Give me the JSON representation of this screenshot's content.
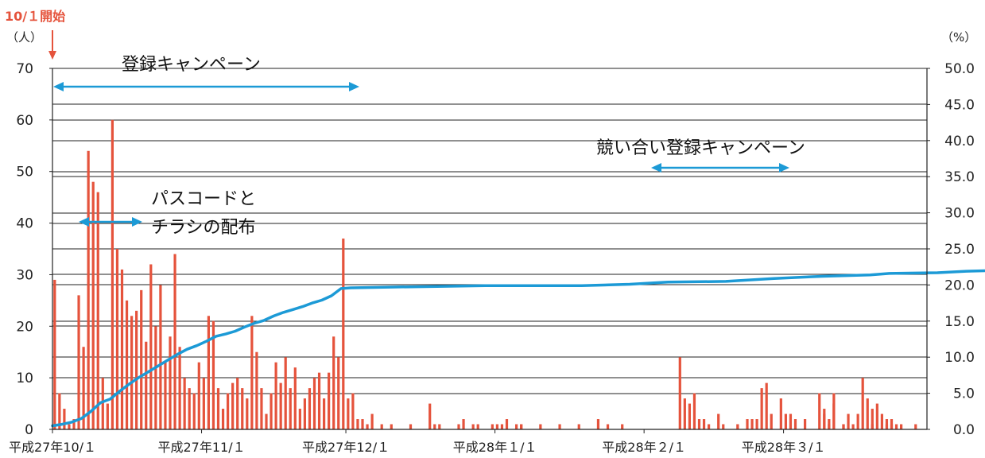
{
  "colors": {
    "bar": "#e5533c",
    "line": "#1c9ad6",
    "arrow": "#1c9ad6",
    "start": "#e5533c",
    "grid": "#222222"
  },
  "start_marker": {
    "label": "10/１開始"
  },
  "annotations": {
    "campaign": "登録キャンペーン",
    "passcode_line1": "パスコードと",
    "passcode_line2": "チラシの配布",
    "competition": "競い合い登録キャンペーン"
  },
  "chart_data": {
    "type": "bar+line",
    "left_axis": {
      "unit": "（人）",
      "min": 0,
      "max": 70,
      "step": 10,
      "ticks": [
        "0",
        "10",
        "20",
        "30",
        "40",
        "50",
        "60",
        "70"
      ]
    },
    "right_axis": {
      "unit": "（%）",
      "min": 0,
      "max": 50,
      "step": 5,
      "ticks": [
        "0.0",
        "5.0",
        "10.0",
        "15.0",
        "20.0",
        "25.0",
        "30.0",
        "35.0",
        "40.0",
        "45.0",
        "50.0"
      ]
    },
    "x_range": {
      "start": "平成27年10/1",
      "end": "平成28年3/31"
    },
    "x_labels": [
      "平成27年10/１",
      "平成27年11/１",
      "平成27年12/１",
      "平成28年１/１",
      "平成28年２/１",
      "平成28年３/１"
    ],
    "bar_series": {
      "axis": "left",
      "values": [
        29,
        7,
        4,
        1,
        2,
        26,
        16,
        54,
        48,
        46,
        10,
        5,
        60,
        35,
        31,
        25,
        22,
        23,
        27,
        17,
        32,
        20,
        28,
        13,
        18,
        34,
        16,
        10,
        8,
        7,
        13,
        10,
        22,
        21,
        8,
        4,
        7,
        9,
        10,
        8,
        6,
        22,
        15,
        8,
        3,
        7,
        13,
        9,
        14,
        8,
        12,
        4,
        6,
        8,
        10,
        11,
        6,
        11,
        18,
        14,
        37,
        6,
        7,
        2,
        2,
        1,
        3,
        0,
        1,
        0,
        0,
        0,
        0,
        0,
        0,
        0,
        0,
        0,
        5,
        1,
        0,
        0,
        0,
        0,
        1,
        2,
        0,
        1,
        1,
        0,
        0,
        1,
        1,
        0,
        2,
        0,
        1,
        1,
        0,
        0,
        0,
        0,
        0,
        0,
        0,
        0,
        0,
        0,
        0,
        0,
        0,
        0,
        0,
        0,
        0,
        0,
        0,
        0,
        0,
        0,
        0,
        0,
        0,
        0,
        0,
        0,
        0,
        0,
        0,
        0,
        14,
        6,
        5,
        7,
        2,
        2,
        1,
        0,
        3,
        1,
        0,
        0,
        1,
        0,
        2,
        2,
        2,
        8,
        9,
        3,
        0,
        6,
        3,
        3,
        2,
        0,
        2,
        0,
        0,
        7,
        3,
        1,
        7,
        0,
        1,
        3,
        1,
        3,
        10,
        6,
        1,
        0,
        0,
        1,
        2,
        1,
        0,
        0,
        0,
        0,
        0,
        0,
        0,
        0,
        0,
        0,
        0,
        0,
        0,
        0,
        0
      ],
      "sparse": [
        {
          "date": "12/10",
          "value": 1
        },
        {
          "date": "12/14",
          "value": 1
        },
        {
          "date": "12/20",
          "value": 1
        },
        {
          "date": "1/2",
          "value": 1
        },
        {
          "date": "1/6",
          "value": 1
        },
        {
          "date": "1/10",
          "value": 1
        },
        {
          "date": "1/14",
          "value": 1
        },
        {
          "date": "1/18",
          "value": 1
        },
        {
          "date": "1/22",
          "value": 2
        },
        {
          "date": "1/24",
          "value": 1
        },
        {
          "date": "1/27",
          "value": 1
        },
        {
          "date": "2/20",
          "value": 1
        },
        {
          "date": "3/9",
          "value": 4
        },
        {
          "date": "3/10",
          "value": 2
        },
        {
          "date": "3/11",
          "value": 5
        },
        {
          "date": "3/13",
          "value": 1
        },
        {
          "date": "3/19",
          "value": 4
        },
        {
          "date": "3/20",
          "value": 5
        },
        {
          "date": "3/21",
          "value": 3
        },
        {
          "date": "3/22",
          "value": 2
        },
        {
          "date": "3/23",
          "value": 1
        },
        {
          "date": "3/25",
          "value": 1
        },
        {
          "date": "3/28",
          "value": 1
        }
      ]
    },
    "line_series": {
      "axis": "right",
      "points": [
        [
          0,
          0.5
        ],
        [
          2,
          0.7
        ],
        [
          4,
          1.0
        ],
        [
          6,
          1.5
        ],
        [
          8,
          2.5
        ],
        [
          10,
          3.7
        ],
        [
          12,
          4.2
        ],
        [
          14,
          5.3
        ],
        [
          16,
          6.3
        ],
        [
          18,
          7.2
        ],
        [
          20,
          8.0
        ],
        [
          22,
          8.8
        ],
        [
          24,
          9.6
        ],
        [
          26,
          10.4
        ],
        [
          28,
          11.1
        ],
        [
          30,
          11.6
        ],
        [
          32,
          12.2
        ],
        [
          34,
          12.9
        ],
        [
          36,
          13.2
        ],
        [
          38,
          13.6
        ],
        [
          40,
          14.2
        ],
        [
          42,
          14.7
        ],
        [
          44,
          15.1
        ],
        [
          46,
          15.7
        ],
        [
          48,
          16.2
        ],
        [
          50,
          16.6
        ],
        [
          52,
          17.0
        ],
        [
          54,
          17.5
        ],
        [
          56,
          17.9
        ],
        [
          58,
          18.5
        ],
        [
          60,
          19.5
        ],
        [
          62,
          19.6
        ],
        [
          70,
          19.7
        ],
        [
          80,
          19.8
        ],
        [
          90,
          19.9
        ],
        [
          100,
          19.9
        ],
        [
          110,
          19.9
        ],
        [
          120,
          20.1
        ],
        [
          125,
          20.3
        ],
        [
          128,
          20.4
        ],
        [
          140,
          20.5
        ],
        [
          150,
          20.9
        ],
        [
          160,
          21.2
        ],
        [
          170,
          21.4
        ],
        [
          174,
          21.6
        ],
        [
          184,
          21.7
        ],
        [
          190,
          21.9
        ],
        [
          196,
          22.0
        ],
        [
          203,
          22.0
        ]
      ]
    }
  }
}
